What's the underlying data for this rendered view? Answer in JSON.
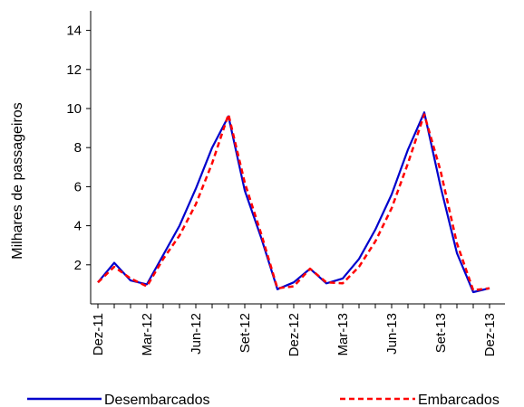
{
  "chart_data": {
    "type": "line",
    "title": "",
    "xlabel": "",
    "ylabel": "Milhares de passageiros",
    "ylim": [
      0,
      15
    ],
    "yticks": [
      2,
      4,
      6,
      8,
      10,
      12,
      14
    ],
    "grid": false,
    "legend_position": "bottom",
    "x_tick_labels": [
      "Dez-11",
      "Mar-12",
      "Jun-12",
      "Set-12",
      "Dez-12",
      "Mar-13",
      "Jun-13",
      "Set-13",
      "Dez-13"
    ],
    "x": [
      "Dez-11",
      "Jan-12",
      "Fev-12",
      "Mar-12",
      "Abr-12",
      "Mai-12",
      "Jun-12",
      "Jul-12",
      "Ago-12",
      "Set-12",
      "Out-12",
      "Nov-12",
      "Dez-12",
      "Jan-13",
      "Fev-13",
      "Mar-13",
      "Abr-13",
      "Mai-13",
      "Jun-13",
      "Jul-13",
      "Ago-13",
      "Set-13",
      "Out-13",
      "Nov-13",
      "Dez-13"
    ],
    "series": [
      {
        "name": "Desembarcados",
        "color": "#0000cc",
        "style": "solid",
        "values": [
          1.1,
          2.1,
          1.2,
          1.0,
          2.5,
          4.0,
          5.9,
          8.0,
          9.6,
          5.8,
          3.4,
          0.75,
          1.1,
          1.8,
          1.05,
          1.3,
          2.3,
          3.8,
          5.6,
          7.9,
          9.8,
          6.0,
          2.6,
          0.6,
          0.8
        ]
      },
      {
        "name": "Embarcados",
        "color": "#ff0000",
        "style": "dashed",
        "values": [
          1.1,
          1.9,
          1.3,
          0.9,
          2.3,
          3.5,
          5.1,
          7.2,
          9.7,
          6.2,
          3.6,
          0.8,
          0.9,
          1.8,
          1.1,
          1.05,
          1.9,
          3.2,
          4.9,
          7.2,
          9.7,
          6.8,
          3.1,
          0.7,
          0.8
        ]
      }
    ]
  }
}
